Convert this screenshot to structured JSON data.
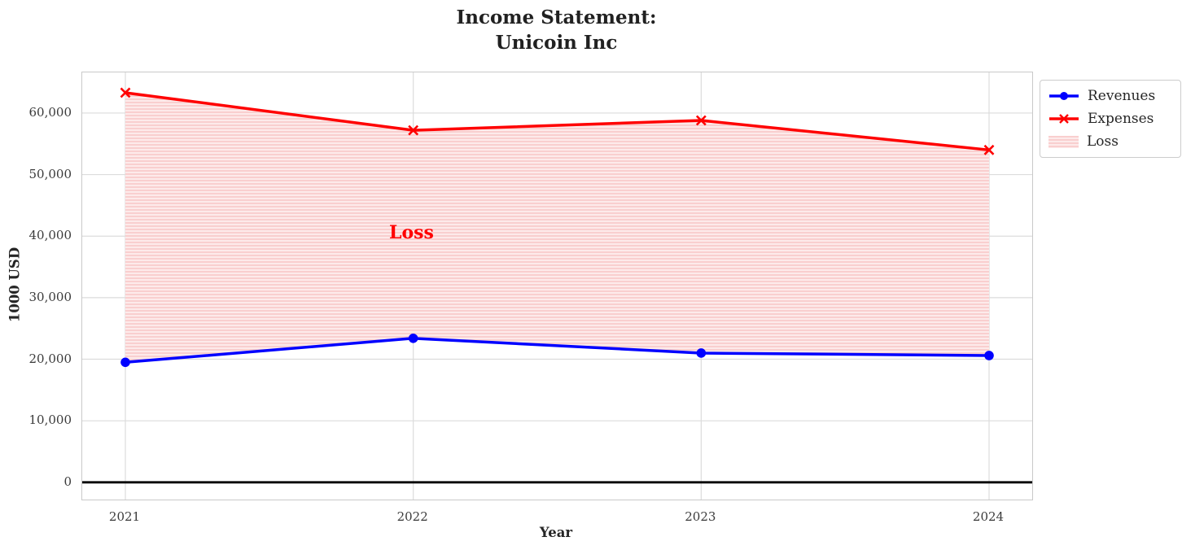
{
  "title": {
    "line1": "Income Statement:",
    "line2": "Unicoin Inc"
  },
  "chart_data": {
    "type": "line",
    "categories": [
      "2021",
      "2022",
      "2023",
      "2024"
    ],
    "series": [
      {
        "name": "Revenues",
        "color": "#0000ff",
        "marker": "circle",
        "values": [
          19500,
          23400,
          21000,
          20600
        ]
      },
      {
        "name": "Expenses",
        "color": "#ff0000",
        "marker": "x",
        "values": [
          63300,
          57200,
          58800,
          54000
        ]
      }
    ],
    "fill_between": {
      "label": "Loss",
      "annotation": "Loss",
      "base_color": "#ff0000",
      "stripe_light": "#fdeaea",
      "stripe_dark": "#f9cfcf",
      "hatch": "horizontal"
    },
    "xlabel": "Year",
    "ylabel": "1000 USD",
    "yticks": [
      0,
      10000,
      20000,
      30000,
      40000,
      50000,
      60000
    ],
    "ytick_labels": [
      "0",
      "10,000",
      "20,000",
      "30,000",
      "40,000",
      "50,000",
      "60,000"
    ],
    "ylim": [
      -2800,
      66600
    ],
    "grid": true,
    "grid_color": "#dcdcdc",
    "zero_line_color": "#000000",
    "legend": {
      "position": "outside upper right",
      "entries": [
        "Revenues",
        "Expenses",
        "Loss"
      ]
    }
  }
}
